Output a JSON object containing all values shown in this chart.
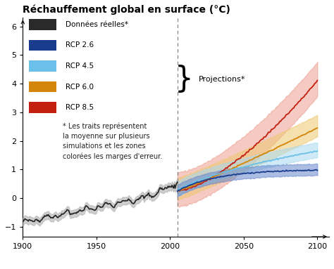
{
  "title": "Réchauffement global en surface (°C)",
  "xlim": [
    1900,
    2108
  ],
  "ylim": [
    -1.35,
    6.3
  ],
  "yticks": [
    -1,
    0,
    1,
    2,
    3,
    4,
    5,
    6
  ],
  "xticks": [
    1900,
    1950,
    2000,
    2050,
    2100
  ],
  "dashed_line_x": 2005,
  "colors": {
    "historical": "#2a2a2a",
    "historical_band": "#b0b0b0",
    "rcp26": "#1a3c8f",
    "rcp26_band": "#6688cc",
    "rcp45": "#6ac0e8",
    "rcp45_band": "#a8daf0",
    "rcp60": "#d4860a",
    "rcp60_band": "#eec870",
    "rcp85": "#c42010",
    "rcp85_band": "#eda090"
  },
  "legend_labels": [
    "Données réelles*",
    "RCP 2.6",
    "RCP 4.5",
    "RCP 6.0",
    "RCP 8.5"
  ],
  "footnote": "* Les traits représentent\nla moyenne sur plusieurs\nsimulations et les zones\ncolorées les marges d'erreur.",
  "projections_label": "Projections*",
  "background_color": "#ffffff"
}
